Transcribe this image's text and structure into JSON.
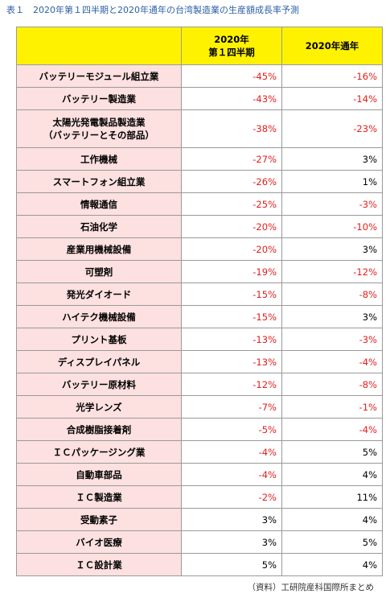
{
  "title": "表１　2020年第１四半期と2020年通年の台湾製造業の生産額成長率予測",
  "table": {
    "columns": [
      [
        "2020年",
        "第１四半期"
      ],
      [
        "2020年通年"
      ]
    ],
    "rows": [
      {
        "label": [
          "バッテリーモジュール組立業"
        ],
        "values": [
          "-45%",
          "-16%"
        ]
      },
      {
        "label": [
          "バッテリー製造業"
        ],
        "values": [
          "-43%",
          "-14%"
        ]
      },
      {
        "label": [
          "太陽光発電製品製造業",
          "（バッテリーとその部品）"
        ],
        "values": [
          "-38%",
          "-23%"
        ]
      },
      {
        "label": [
          "工作機械"
        ],
        "values": [
          "-27%",
          "3%"
        ]
      },
      {
        "label": [
          "スマートフォン組立業"
        ],
        "values": [
          "-26%",
          "1%"
        ]
      },
      {
        "label": [
          "情報通信"
        ],
        "values": [
          "-25%",
          "-3%"
        ]
      },
      {
        "label": [
          "石油化学"
        ],
        "values": [
          "-20%",
          "-10%"
        ]
      },
      {
        "label": [
          "産業用機械設備"
        ],
        "values": [
          "-20%",
          "3%"
        ]
      },
      {
        "label": [
          "可塑剤"
        ],
        "values": [
          "-19%",
          "-12%"
        ]
      },
      {
        "label": [
          "発光ダイオード"
        ],
        "values": [
          "-15%",
          "-8%"
        ]
      },
      {
        "label": [
          "ハイテク機械設備"
        ],
        "values": [
          "-15%",
          "3%"
        ]
      },
      {
        "label": [
          "プリント基板"
        ],
        "values": [
          "-13%",
          "-3%"
        ]
      },
      {
        "label": [
          "ディスプレイパネル"
        ],
        "values": [
          "-13%",
          "-4%"
        ]
      },
      {
        "label": [
          "バッテリー原材料"
        ],
        "values": [
          "-12%",
          "-8%"
        ]
      },
      {
        "label": [
          "光学レンズ"
        ],
        "values": [
          "-7%",
          "-1%"
        ]
      },
      {
        "label": [
          "合成樹脂接着剤"
        ],
        "values": [
          "-5%",
          "-4%"
        ]
      },
      {
        "label": [
          "ＩＣパッケージング業"
        ],
        "values": [
          "-4%",
          "5%"
        ]
      },
      {
        "label": [
          "自動車部品"
        ],
        "values": [
          "-4%",
          "4%"
        ]
      },
      {
        "label": [
          "ＩＣ製造業"
        ],
        "values": [
          "-2%",
          "11%"
        ]
      },
      {
        "label": [
          "受動素子"
        ],
        "values": [
          "3%",
          "4%"
        ]
      },
      {
        "label": [
          "バイオ医療"
        ],
        "values": [
          "3%",
          "5%"
        ]
      },
      {
        "label": [
          "ＩＣ設計業"
        ],
        "values": [
          "5%",
          "4%"
        ]
      }
    ]
  },
  "source": "（資料）工研院産科国際所まとめ"
}
